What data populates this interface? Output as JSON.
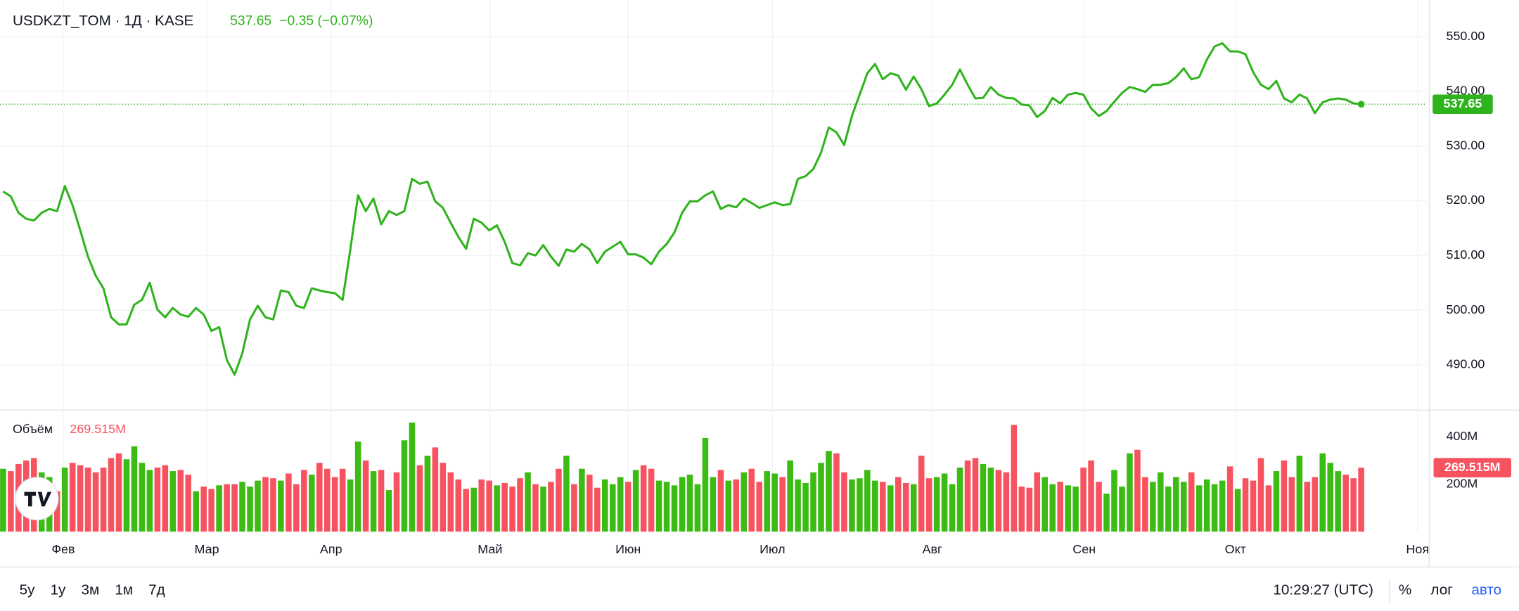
{
  "chart_data": [
    {
      "type": "line",
      "title": "USDKZT_TOM · 1Д · KASE",
      "change": "−0.35 (−0.07%)",
      "color": "#2fb31c",
      "label_color": "#2fb31c",
      "grid": true,
      "xlim": [
        -0.4,
        184.5
      ],
      "xticks": [
        {
          "value": 7.8,
          "label": "Фев"
        },
        {
          "value": 26.4,
          "label": "Мар"
        },
        {
          "value": 42.5,
          "label": "Апр"
        },
        {
          "value": 63.1,
          "label": "Май"
        },
        {
          "value": 81.0,
          "label": "Июн"
        },
        {
          "value": 99.7,
          "label": "Июл"
        },
        {
          "value": 120.4,
          "label": "Авг"
        },
        {
          "value": 140.1,
          "label": "Сен"
        },
        {
          "value": 159.7,
          "label": "Окт"
        },
        {
          "value": 183.3,
          "label": "Ноя"
        }
      ],
      "ylim": [
        482.0,
        556.7
      ],
      "yticks": [
        {
          "value": 490,
          "label": "490.00"
        },
        {
          "value": 500,
          "label": "500.00"
        },
        {
          "value": 510,
          "label": "510.00"
        },
        {
          "value": 520,
          "label": "520.00"
        },
        {
          "value": 530,
          "label": "530.00"
        },
        {
          "value": 540,
          "label": "540.00"
        },
        {
          "value": 550,
          "label": "550.00"
        }
      ],
      "series": [
        {
          "name": "USDKZT_TOM",
          "color": "#2fb31c",
          "values": [
            521.7,
            520.8,
            517.8,
            516.7,
            516.4,
            517.8,
            518.5,
            518.1,
            522.7,
            519.2,
            514.6,
            509.8,
            506.3,
            504.0,
            498.7,
            497.4,
            497.4,
            501.0,
            501.9,
            505.0,
            500.1,
            498.7,
            500.4,
            499.2,
            498.8,
            500.4,
            499.2,
            496.2,
            496.9,
            490.9,
            488.2,
            492.1,
            498.3,
            500.8,
            498.7,
            498.3,
            503.6,
            503.3,
            500.8,
            500.4,
            504.0,
            503.6,
            503.3,
            503.1,
            501.9,
            511.1,
            521.0,
            518.1,
            520.4,
            515.7,
            518.1,
            517.4,
            518.1,
            524.0,
            523.1,
            523.5,
            519.9,
            518.7,
            516.0,
            513.4,
            511.2,
            516.7,
            516.0,
            514.6,
            515.5,
            512.5,
            508.6,
            508.2,
            510.4,
            510.0,
            511.9,
            509.8,
            508.1,
            511.1,
            510.7,
            512.1,
            511.1,
            508.6,
            510.7,
            511.6,
            512.5,
            510.2,
            510.2,
            509.6,
            508.4,
            510.7,
            512.1,
            514.2,
            517.8,
            519.9,
            519.9,
            521.0,
            521.7,
            518.5,
            519.2,
            518.8,
            520.4,
            519.6,
            518.7,
            519.2,
            519.7,
            519.2,
            519.4,
            524.0,
            524.5,
            525.8,
            528.8,
            533.4,
            532.5,
            530.2,
            535.5,
            539.4,
            543.3,
            545.0,
            542.2,
            543.3,
            542.9,
            540.3,
            542.7,
            540.4,
            537.3,
            537.8,
            539.4,
            541.2,
            544.0,
            541.2,
            538.7,
            538.8,
            540.8,
            539.4,
            538.8,
            538.7,
            537.6,
            537.4,
            535.3,
            536.4,
            538.8,
            537.8,
            539.4,
            539.7,
            539.4,
            536.9,
            535.5,
            536.4,
            538.1,
            539.7,
            540.8,
            540.4,
            539.9,
            541.2,
            541.2,
            541.5,
            542.6,
            544.2,
            542.2,
            542.6,
            545.8,
            548.2,
            548.8,
            547.3,
            547.3,
            546.8,
            543.5,
            541.2,
            540.4,
            541.9,
            538.7,
            538.0,
            539.4,
            538.7,
            536.0,
            538.0,
            538.5,
            538.7,
            538.5,
            537.8,
            537.65
          ]
        }
      ]
    },
    {
      "type": "bar",
      "title": "Объём",
      "last_label": "269.515M",
      "up_color": "#3cbb14",
      "down_color": "#f7525f",
      "ylim": [
        0,
        486
      ],
      "yticks": [
        {
          "value": 200,
          "label": "200M"
        },
        {
          "value": 400,
          "label": "400M"
        }
      ],
      "series": [
        {
          "name": "Объём",
          "values": [
            265,
            255,
            285,
            300,
            310,
            250,
            230,
            170,
            270,
            290,
            280,
            270,
            250,
            270,
            310,
            330,
            305,
            360,
            290,
            260,
            270,
            280,
            255,
            260,
            240,
            170,
            190,
            180,
            195,
            200,
            200,
            210,
            190,
            215,
            230,
            225,
            215,
            245,
            200,
            260,
            240,
            290,
            265,
            230,
            265,
            220,
            380,
            300,
            255,
            260,
            175,
            250,
            385,
            460,
            280,
            320,
            355,
            290,
            250,
            220,
            180,
            185,
            220,
            215,
            195,
            205,
            190,
            225,
            250,
            200,
            190,
            210,
            265,
            320,
            200,
            265,
            240,
            185,
            220,
            200,
            230,
            210,
            260,
            280,
            265,
            215,
            210,
            195,
            230,
            240,
            200,
            395,
            230,
            260,
            215,
            220,
            250,
            265,
            210,
            255,
            245,
            230,
            300,
            220,
            205,
            250,
            290,
            340,
            330,
            250,
            220,
            225,
            260,
            215,
            210,
            195,
            230,
            205,
            200,
            320,
            225,
            230,
            245,
            200,
            270,
            300,
            310,
            285,
            270,
            260,
            250,
            450,
            190,
            185,
            250,
            230,
            200,
            210,
            195,
            190,
            270,
            300,
            210,
            160,
            260,
            190,
            330,
            345,
            230,
            210,
            250,
            190,
            230,
            210,
            250,
            195,
            220,
            200,
            215,
            275,
            180,
            225,
            215,
            310,
            195,
            255,
            300,
            230,
            320,
            210,
            230,
            330,
            290,
            255,
            240,
            225,
            269.515
          ]
        }
      ]
    }
  ],
  "toolbar": {
    "ranges": [
      "5у",
      "1у",
      "3м",
      "1м",
      "7д"
    ],
    "time": "10:29:27 (UTC)",
    "options": [
      "%",
      "лог",
      "авто"
    ]
  }
}
